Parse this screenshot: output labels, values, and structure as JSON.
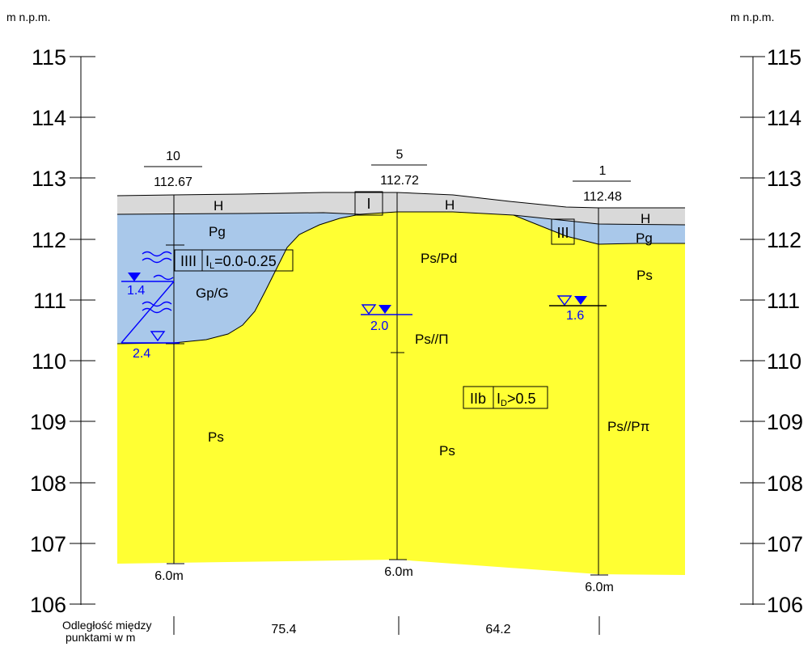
{
  "axes": {
    "unit_label_left": "m  n.p.m.",
    "unit_label_right": "m  n.p.m.",
    "ticks": [
      "115",
      "114",
      "113",
      "112",
      "111",
      "110",
      "109",
      "108",
      "107",
      "106"
    ]
  },
  "boreholes": [
    {
      "number": "10",
      "elevation": "112.67",
      "depth": "6.0m",
      "water_table_a": "1.4",
      "water_table_b": "2.4"
    },
    {
      "number": "5",
      "elevation": "112.72",
      "depth": "6.0m",
      "water_table_a": "2.0"
    },
    {
      "number": "1",
      "elevation": "112.48",
      "depth": "6.0m",
      "water_table_a": "1.6"
    }
  ],
  "layers": {
    "topsoil": {
      "label": "H",
      "color": "#d9d9d9"
    },
    "clay": {
      "label_top": "Pg",
      "label_main": "Gp/G",
      "color": "#a9c8ea"
    },
    "clay_right": {
      "label": "Pg"
    },
    "sand": {
      "color": "#ffff33"
    }
  },
  "sand_labels": [
    "Ps/Pd",
    "Ps//Π",
    "Ps",
    "Ps",
    "Ps",
    "Ps//Pπ"
  ],
  "boxes": {
    "clay_zone": "IIII",
    "clay_index": "I",
    "clay_index_sub": "L",
    "clay_index_value": "=0.0-0.25",
    "sand_zone": "IIb",
    "sand_index": "I",
    "sand_index_sub": "D",
    "sand_index_value": ">0.5",
    "small_box_mid": "I",
    "small_box_right": "III"
  },
  "distances": {
    "label_line1": "Odległość między",
    "label_line2": "punktami w m",
    "values": [
      "75.4",
      "64.2"
    ]
  },
  "colors": {
    "water": "#0000ff",
    "ink": "#000000"
  }
}
